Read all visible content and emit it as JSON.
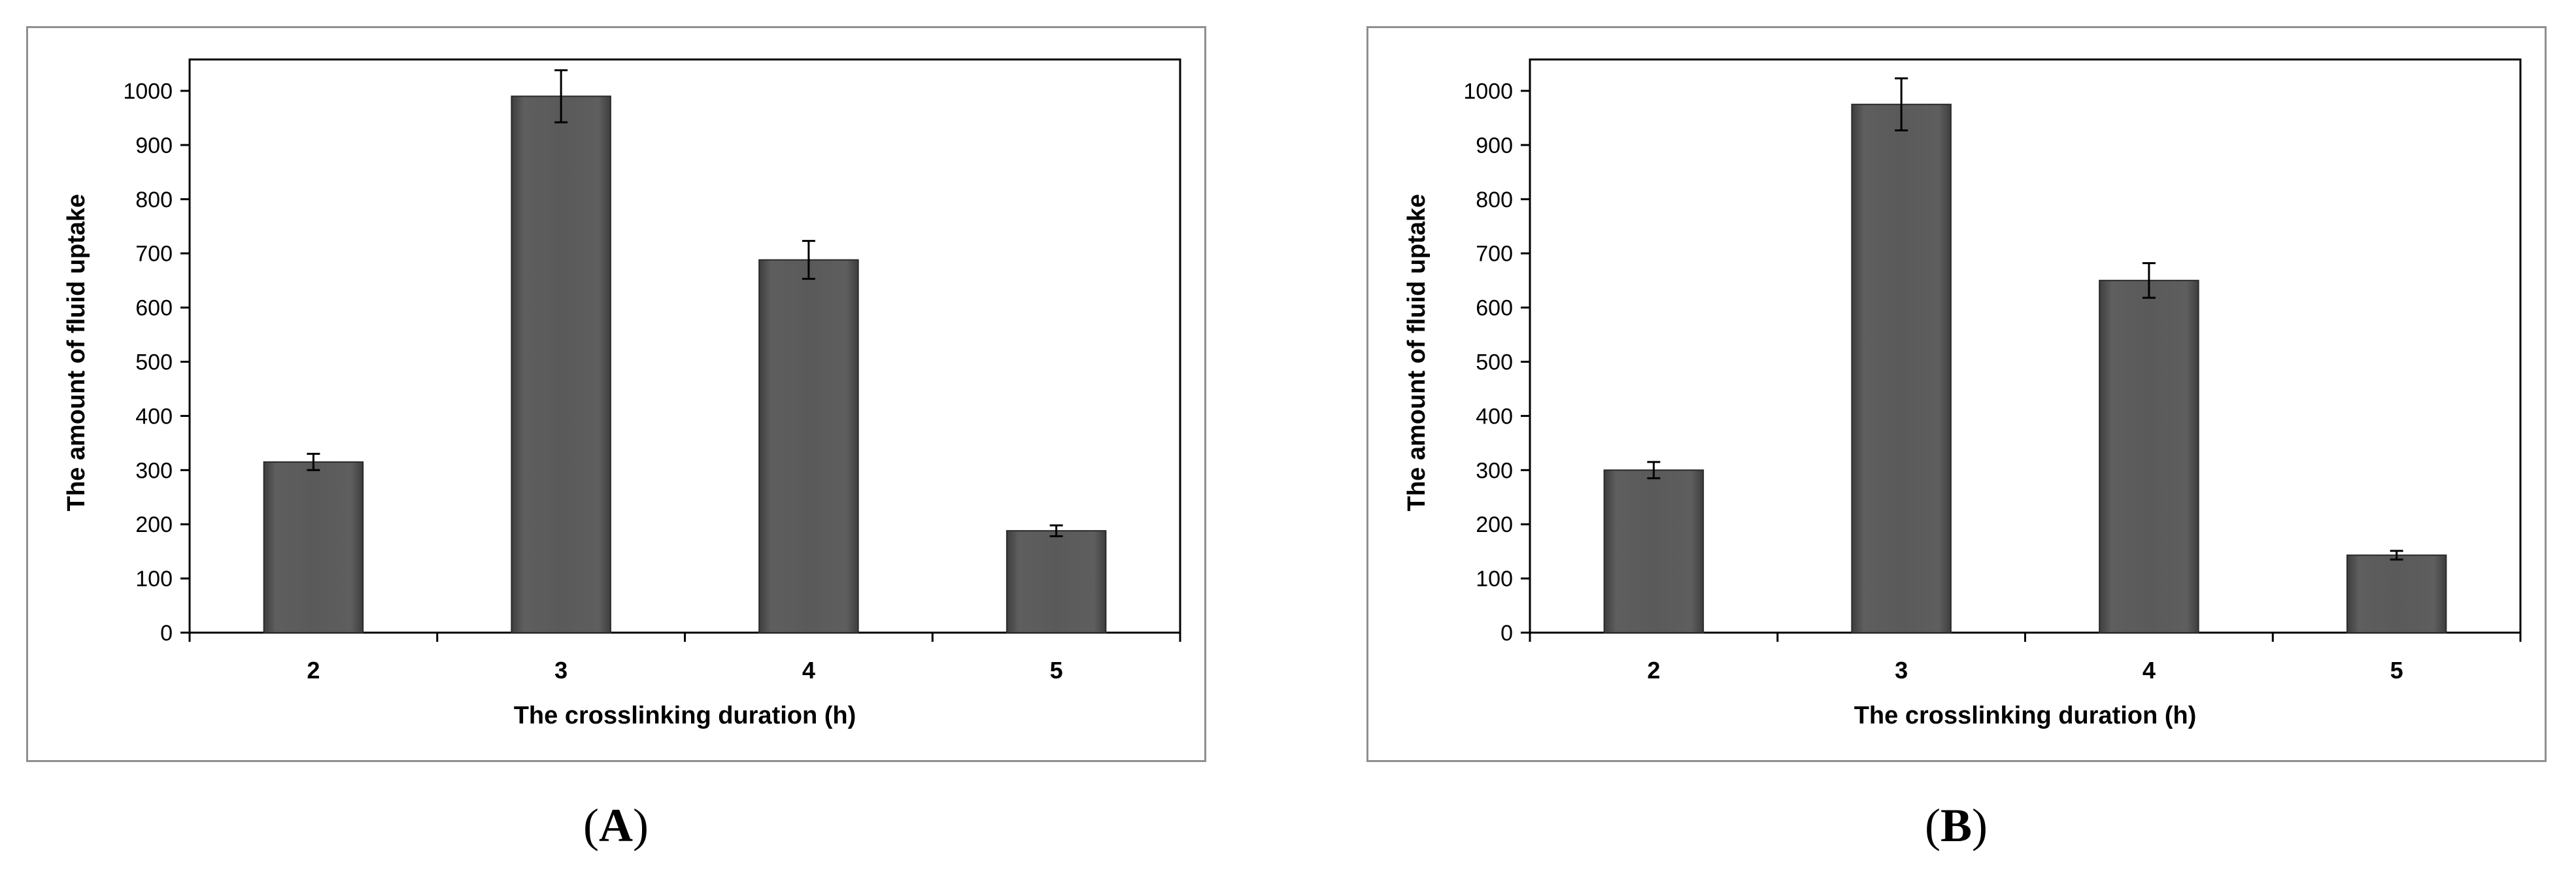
{
  "chart_data": [
    {
      "type": "bar",
      "panel_label": "A",
      "categories": [
        "2",
        "3",
        "4",
        "5"
      ],
      "values": [
        315,
        990,
        688,
        188
      ],
      "errors": [
        15,
        48,
        35,
        10
      ],
      "xlabel": "The crosslinking duration (h)",
      "ylabel": "The amount of fluid uptake",
      "ylim": [
        0,
        1000
      ],
      "yticks": [
        0,
        100,
        200,
        300,
        400,
        500,
        600,
        700,
        800,
        900,
        1000
      ],
      "grid": false,
      "bar_color": "#5a5a5a"
    },
    {
      "type": "bar",
      "panel_label": "B",
      "categories": [
        "2",
        "3",
        "4",
        "5"
      ],
      "values": [
        300,
        975,
        650,
        143
      ],
      "errors": [
        15,
        48,
        32,
        8
      ],
      "xlabel": "The crosslinking duration (h)",
      "ylabel": "The amount of fluid uptake",
      "ylim": [
        0,
        1000
      ],
      "yticks": [
        0,
        100,
        200,
        300,
        400,
        500,
        600,
        700,
        800,
        900,
        1000
      ],
      "grid": false,
      "bar_color": "#5a5a5a"
    }
  ]
}
